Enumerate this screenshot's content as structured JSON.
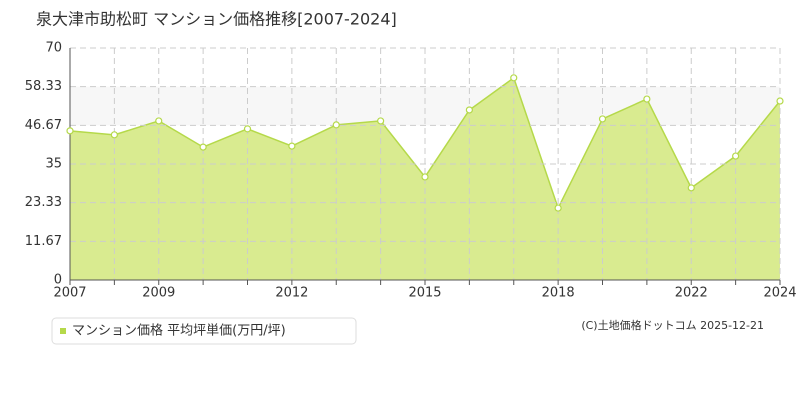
{
  "chart_data": {
    "type": "area",
    "title": "泉大津市助松町 マンション価格推移[2007-2024]",
    "categories": [
      "2007",
      null,
      "2009",
      null,
      null,
      "2012",
      null,
      null,
      "2015",
      null,
      null,
      "2018",
      null,
      null,
      "2022",
      null,
      "2024"
    ],
    "series": [
      {
        "name": "マンション価格 平均坪単価(万円/坪)",
        "color": "#b5d94a",
        "values": [
          45,
          43.8,
          48,
          40.1,
          45.6,
          40.4,
          46.8,
          48,
          31.1,
          51.3,
          61,
          21.7,
          48.6,
          54.6,
          27.8,
          37.4,
          54
        ]
      }
    ],
    "ylim": [
      0,
      70
    ],
    "yticks": [
      0,
      11.67,
      23.33,
      35,
      46.67,
      58.33,
      70
    ],
    "grid": true,
    "source": "(C)土地価格ドットコム 2025-12-21"
  }
}
